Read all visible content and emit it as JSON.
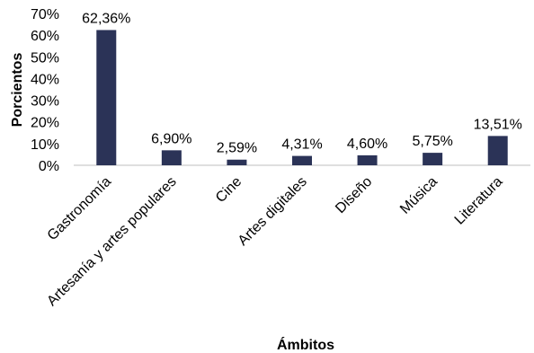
{
  "chart_data": {
    "type": "bar",
    "categories": [
      "Gastronomía",
      "Artesanía y artes populares",
      "Cine",
      "Artes digitales",
      "Diseño",
      "Música",
      "Literatura"
    ],
    "values": [
      62.36,
      6.9,
      2.59,
      4.31,
      4.6,
      5.75,
      13.51
    ],
    "data_labels": [
      "62,36%",
      "6,90%",
      "2,59%",
      "4,31%",
      "4,60%",
      "5,75%",
      "13,51%"
    ],
    "y_ticks": [
      0,
      10,
      20,
      30,
      40,
      50,
      60,
      70
    ],
    "y_tick_labels": [
      "0%",
      "10%",
      "20%",
      "30%",
      "40%",
      "50%",
      "60%",
      "70%"
    ],
    "xlabel": "Ámbitos",
    "ylabel": "Porcientos",
    "ylim": [
      0,
      70
    ],
    "grid": false,
    "bar_color": "#2b3357"
  }
}
